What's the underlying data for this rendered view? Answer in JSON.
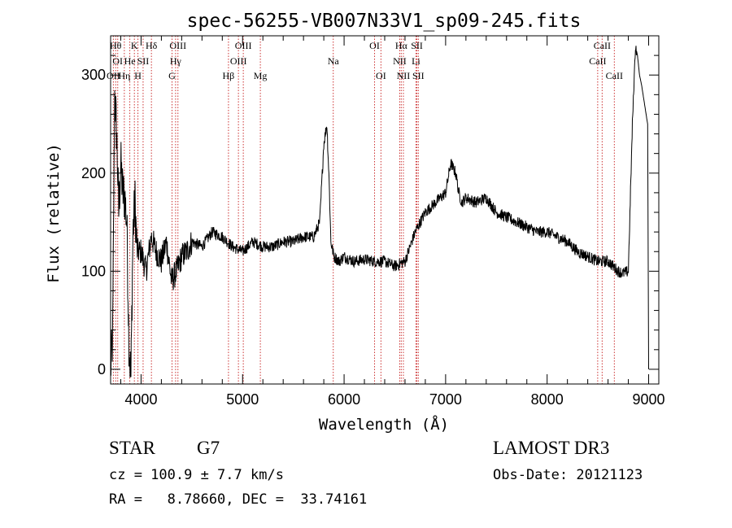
{
  "chart_data": {
    "type": "line",
    "title": "spec-56255-VB007N33V1_sp09-245.fits",
    "xlabel": "Wavelength (Å)",
    "ylabel": "Flux (relative)",
    "xlim": [
      3700,
      9100
    ],
    "ylim": [
      -15,
      340
    ],
    "xticks": [
      4000,
      5000,
      6000,
      7000,
      8000,
      9000
    ],
    "yticks": [
      0,
      100,
      200,
      300
    ],
    "x_minor_step": 200,
    "y_minor_step": 20,
    "series": [
      {
        "name": "flux",
        "x": [
          3700,
          3720,
          3740,
          3760,
          3780,
          3800,
          3820,
          3840,
          3860,
          3880,
          3900,
          3920,
          3940,
          3960,
          4000,
          4050,
          4100,
          4150,
          4200,
          4250,
          4300,
          4350,
          4400,
          4450,
          4500,
          4600,
          4700,
          4800,
          4900,
          5000,
          5100,
          5200,
          5300,
          5400,
          5500,
          5600,
          5700,
          5760,
          5800,
          5830,
          5850,
          5870,
          5900,
          5950,
          6000,
          6100,
          6200,
          6300,
          6400,
          6500,
          6600,
          6700,
          6800,
          6900,
          7000,
          7050,
          7100,
          7130,
          7160,
          7200,
          7300,
          7400,
          7500,
          7600,
          7700,
          7800,
          7900,
          8000,
          8100,
          8200,
          8300,
          8400,
          8500,
          8600,
          8700,
          8750,
          8800,
          8840,
          8870,
          8890,
          8910,
          8930,
          8960,
          8990,
          9000
        ],
        "y": [
          0,
          30,
          280,
          240,
          160,
          210,
          180,
          175,
          150,
          30,
          -10,
          140,
          170,
          120,
          120,
          100,
          135,
          120,
          110,
          130,
          90,
          100,
          115,
          120,
          130,
          125,
          140,
          135,
          125,
          120,
          130,
          125,
          125,
          130,
          130,
          135,
          135,
          150,
          230,
          250,
          200,
          130,
          115,
          110,
          115,
          110,
          112,
          110,
          110,
          105,
          110,
          140,
          160,
          170,
          180,
          210,
          200,
          180,
          170,
          175,
          170,
          175,
          160,
          155,
          150,
          145,
          140,
          140,
          135,
          130,
          120,
          115,
          110,
          110,
          100,
          98,
          100,
          250,
          330,
          320,
          300,
          290,
          270,
          250,
          0
        ],
        "style": "rough"
      }
    ],
    "annotations": [
      {
        "label": "OII",
        "x": 3727,
        "row": 2
      },
      {
        "label": "Hθ",
        "x": 3750,
        "row": 0
      },
      {
        "label": "OI",
        "x": 3770,
        "row": 1
      },
      {
        "label": "Hη",
        "x": 3835,
        "row": 2
      },
      {
        "label": "K",
        "x": 3934,
        "row": 0
      },
      {
        "label": "He",
        "x": 3889,
        "row": 1
      },
      {
        "label": "H",
        "x": 3969,
        "row": 2
      },
      {
        "label": "SII",
        "x": 4020,
        "row": 1
      },
      {
        "label": "Hδ",
        "x": 4102,
        "row": 0
      },
      {
        "label": "OIII",
        "x": 4363,
        "row": 0
      },
      {
        "label": "Hγ",
        "x": 4340,
        "row": 1
      },
      {
        "label": "G",
        "x": 4305,
        "row": 2
      },
      {
        "label": "OIII",
        "x": 5007,
        "row": 0
      },
      {
        "label": "OIII",
        "x": 4959,
        "row": 1
      },
      {
        "label": "Hβ",
        "x": 4861,
        "row": 2
      },
      {
        "label": "Mg",
        "x": 5175,
        "row": 2
      },
      {
        "label": "Na",
        "x": 5893,
        "row": 1
      },
      {
        "label": "OI",
        "x": 6300,
        "row": 0
      },
      {
        "label": "OI",
        "x": 6363,
        "row": 2
      },
      {
        "label": "Hα",
        "x": 6563,
        "row": 0
      },
      {
        "label": "NII",
        "x": 6548,
        "row": 1
      },
      {
        "label": "NII",
        "x": 6584,
        "row": 2
      },
      {
        "label": "SII",
        "x": 6717,
        "row": 0
      },
      {
        "label": "Li",
        "x": 6708,
        "row": 1
      },
      {
        "label": "SII",
        "x": 6731,
        "row": 2
      },
      {
        "label": "CaII",
        "x": 8542,
        "row": 0
      },
      {
        "label": "CaII",
        "x": 8498,
        "row": 1
      },
      {
        "label": "CaII",
        "x": 8662,
        "row": 2
      }
    ]
  },
  "info": {
    "object_class": "STAR",
    "subclass": "G7",
    "survey": "LAMOST DR3",
    "redshift": "cz = 100.9 ± 7.7 km/s",
    "obs_date": "Obs-Date: 20121123",
    "coords": "RA =   8.78660, DEC =  33.74161"
  }
}
